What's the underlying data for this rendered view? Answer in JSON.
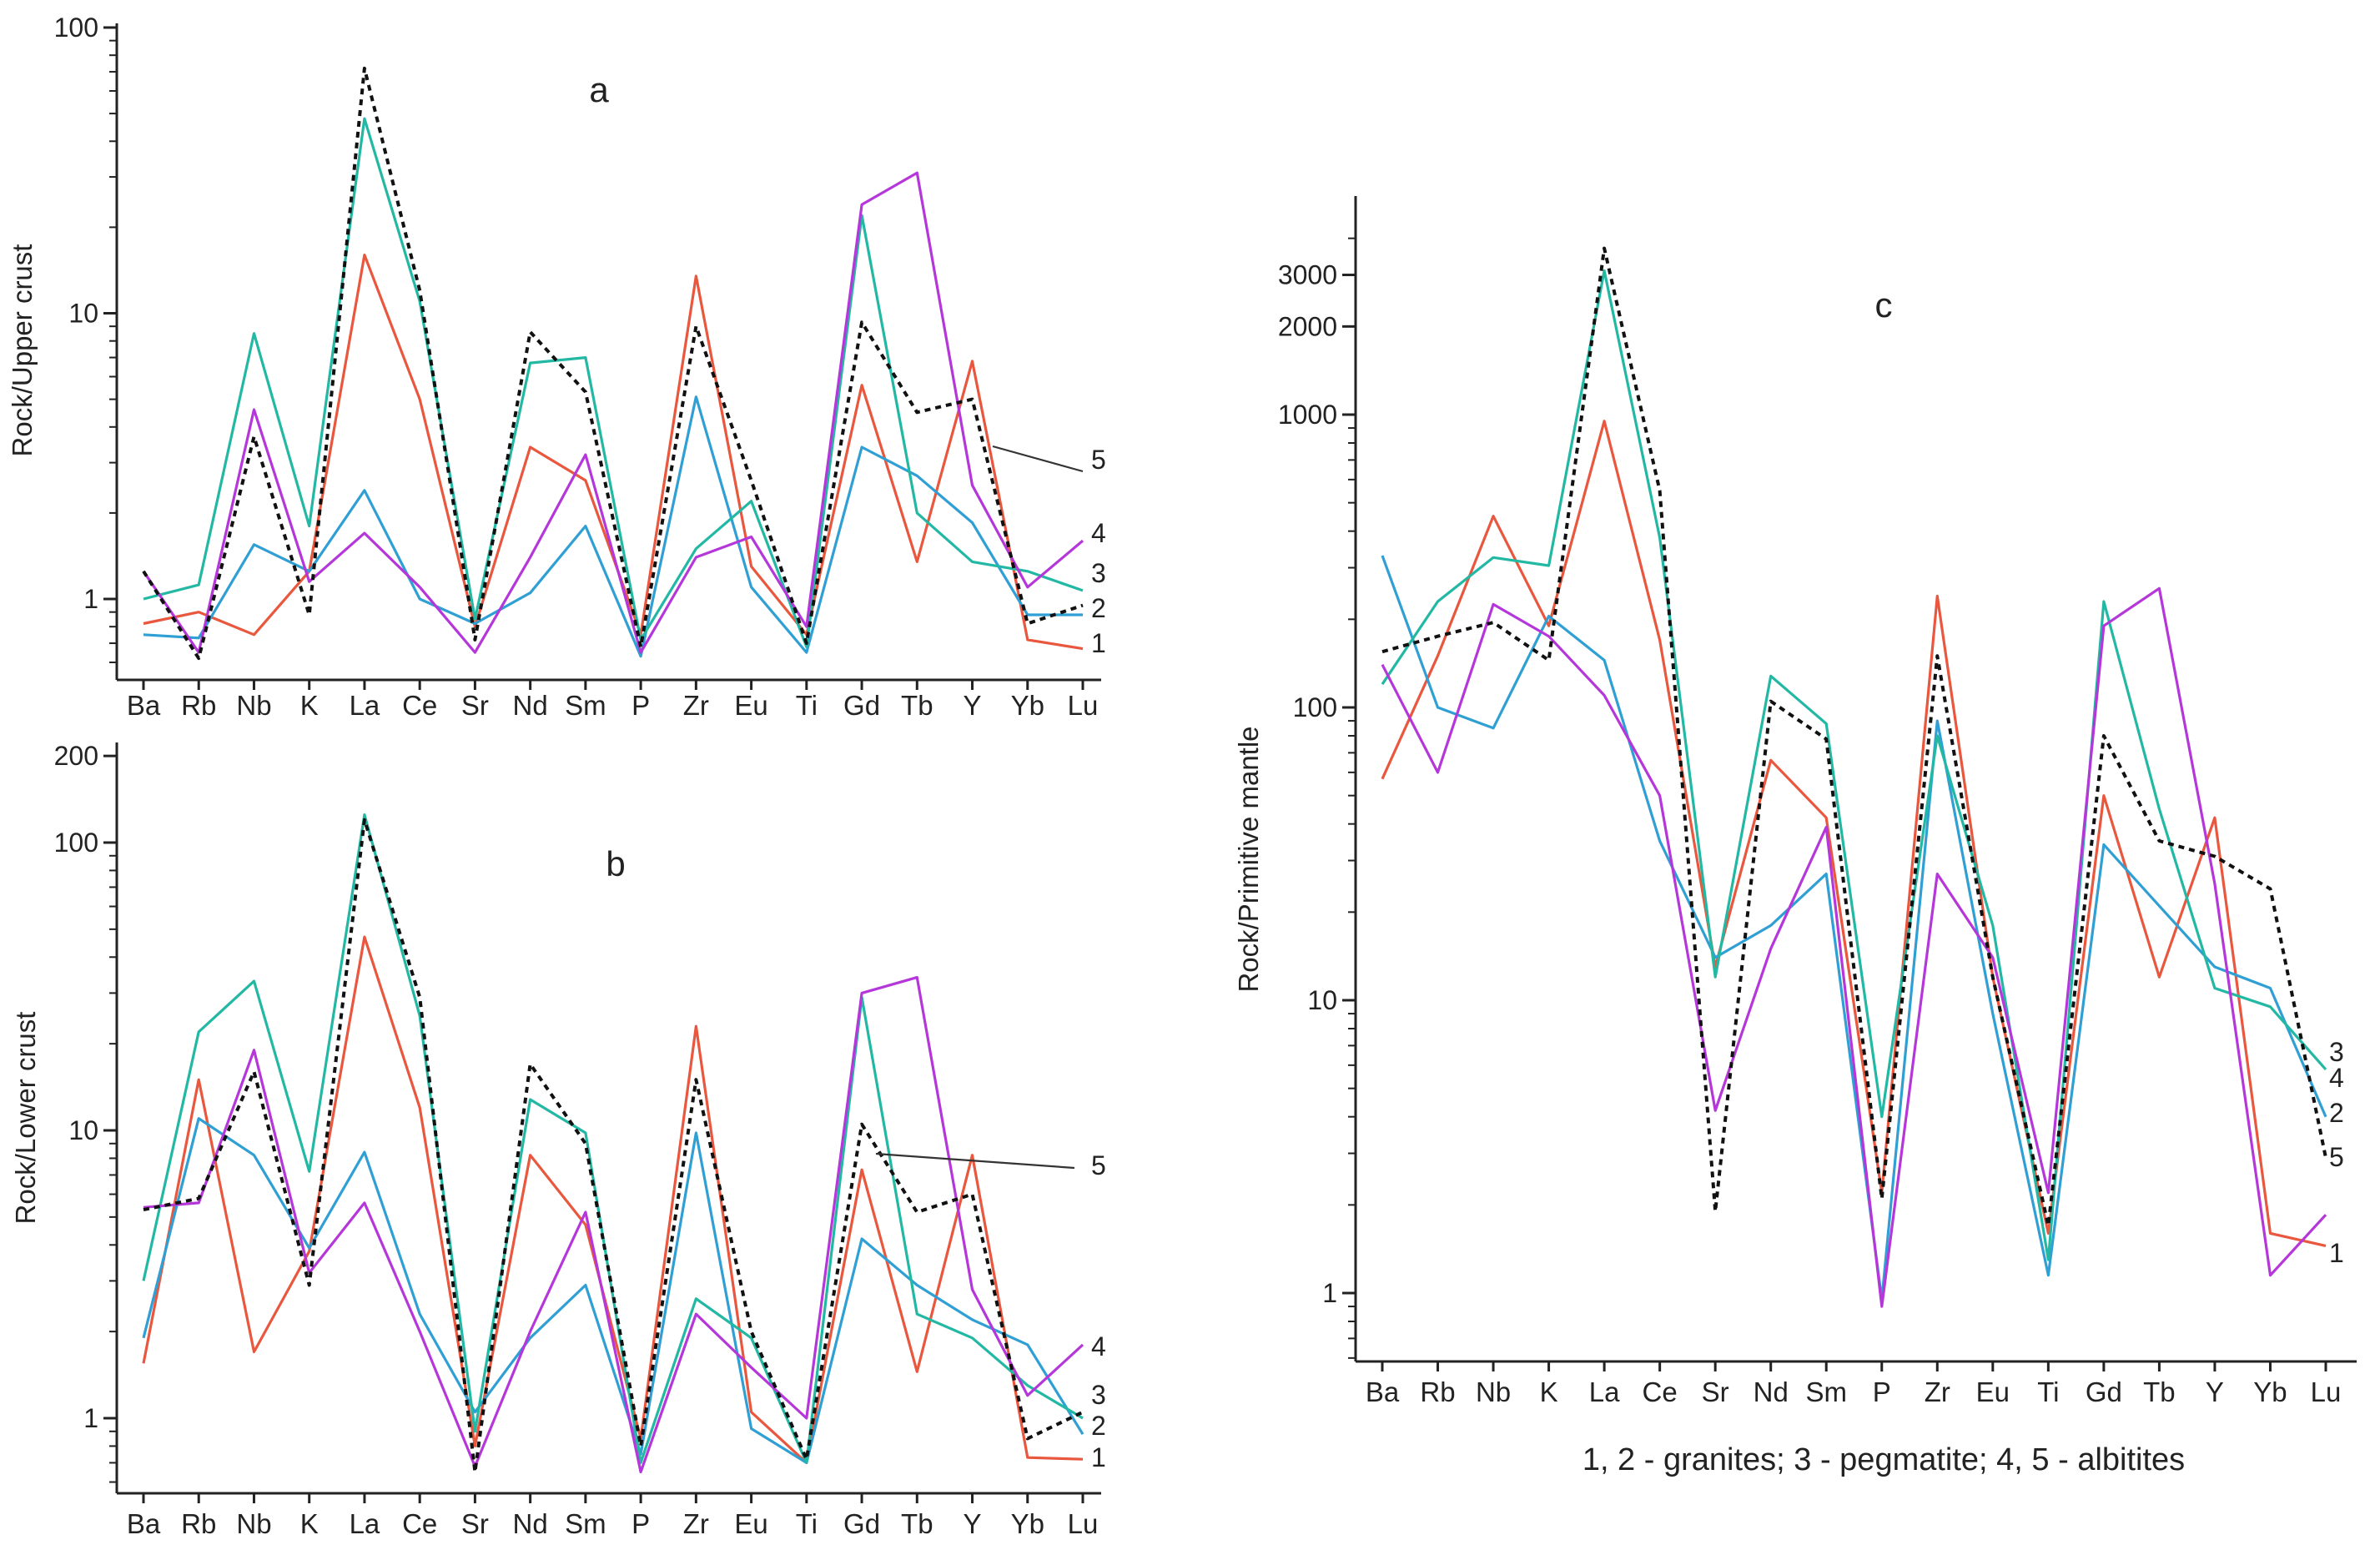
{
  "caption": "1, 2 - granites; 3 - pegmatite; 4, 5 - albitites",
  "series_styles": [
    {
      "id": "1",
      "color": "#e8573e",
      "dash": "solid"
    },
    {
      "id": "2",
      "color": "#2f9fd4",
      "dash": "solid"
    },
    {
      "id": "3",
      "color": "#22b8a4",
      "dash": "solid"
    },
    {
      "id": "4",
      "color": "#b537d9",
      "dash": "solid"
    },
    {
      "id": "5",
      "color": "#111111",
      "dash": "dotted"
    }
  ],
  "chart_data": [
    {
      "panel": "a",
      "type": "line",
      "ylabel": "Rock/Upper crust",
      "y_scale": "log",
      "ylim": [
        0.55,
        100
      ],
      "y_ticks": [
        1,
        10,
        100
      ],
      "y_tick_labels": [
        "1",
        "10",
        "100"
      ],
      "categories": [
        "Ba",
        "Rb",
        "Nb",
        "K",
        "La",
        "Ce",
        "Sr",
        "Nd",
        "Sm",
        "P",
        "Zr",
        "Eu",
        "Ti",
        "Gd",
        "Tb",
        "Y",
        "Yb",
        "Lu"
      ],
      "series": [
        {
          "name": "1",
          "values": [
            0.82,
            0.9,
            0.75,
            1.25,
            16,
            5,
            0.8,
            3.4,
            2.6,
            0.75,
            13.5,
            1.3,
            0.75,
            5.6,
            1.35,
            6.8,
            0.72,
            0.67
          ]
        },
        {
          "name": "2",
          "values": [
            0.75,
            0.73,
            1.55,
            1.25,
            2.4,
            1.0,
            0.82,
            1.05,
            1.8,
            0.63,
            5.1,
            1.1,
            0.65,
            3.4,
            2.7,
            1.85,
            0.88,
            0.88
          ]
        },
        {
          "name": "3",
          "values": [
            1.0,
            1.12,
            8.5,
            1.8,
            48,
            11,
            0.85,
            6.7,
            7.0,
            0.72,
            1.5,
            2.2,
            0.68,
            22,
            2.0,
            1.35,
            1.25,
            1.07
          ]
        },
        {
          "name": "4",
          "values": [
            1.25,
            0.65,
            4.6,
            1.15,
            1.7,
            1.1,
            0.65,
            1.4,
            3.2,
            0.65,
            1.4,
            1.65,
            0.8,
            24,
            31,
            2.5,
            1.1,
            1.6
          ]
        },
        {
          "name": "5",
          "values": [
            1.25,
            0.62,
            3.7,
            0.88,
            72,
            12,
            0.72,
            8.6,
            5.3,
            0.68,
            9,
            2.6,
            0.7,
            9.3,
            4.5,
            5.0,
            0.82,
            0.95
          ]
        }
      ],
      "series_labels": [
        "1",
        "2",
        "3",
        "4",
        "5"
      ]
    },
    {
      "panel": "b",
      "type": "line",
      "ylabel": "Rock/Lower crust",
      "y_scale": "log",
      "ylim": [
        0.5,
        200
      ],
      "y_ticks": [
        1,
        10,
        100,
        200
      ],
      "y_tick_labels": [
        "1",
        "10",
        "100",
        "200"
      ],
      "categories": [
        "Ba",
        "Rb",
        "Nb",
        "K",
        "La",
        "Ce",
        "Sr",
        "Nd",
        "Sm",
        "P",
        "Zr",
        "Eu",
        "Ti",
        "Gd",
        "Tb",
        "Y",
        "Yb",
        "Lu"
      ],
      "series": [
        {
          "name": "1",
          "values": [
            1.55,
            15,
            1.7,
            3.8,
            47,
            12,
            0.8,
            8.2,
            4.7,
            0.85,
            23,
            1.05,
            0.7,
            7.3,
            1.45,
            8.2,
            0.73,
            0.72
          ]
        },
        {
          "name": "2",
          "values": [
            1.9,
            11,
            8.2,
            3.9,
            8.4,
            2.3,
            1.05,
            1.9,
            2.9,
            0.75,
            9.8,
            0.92,
            0.7,
            4.2,
            2.9,
            2.2,
            1.8,
            0.88
          ]
        },
        {
          "name": "3",
          "values": [
            3.0,
            22,
            33,
            7.2,
            125,
            25,
            0.9,
            12.8,
            9.8,
            0.7,
            2.6,
            1.9,
            0.7,
            29,
            2.3,
            1.9,
            1.3,
            1.0
          ]
        },
        {
          "name": "4",
          "values": [
            5.4,
            5.6,
            19,
            3.2,
            5.6,
            2.0,
            0.68,
            2.0,
            5.2,
            0.65,
            2.3,
            1.5,
            1.0,
            30,
            34,
            2.8,
            1.2,
            1.8
          ]
        },
        {
          "name": "5",
          "values": [
            5.3,
            5.8,
            16,
            2.9,
            120,
            29,
            0.65,
            17,
            9.0,
            0.8,
            15,
            2.0,
            0.72,
            10.5,
            5.2,
            6.0,
            0.85,
            1.05
          ]
        }
      ],
      "series_labels": [
        "1",
        "2",
        "3",
        "4",
        "5"
      ]
    },
    {
      "panel": "c",
      "type": "line",
      "ylabel": "Rock/Primitive mantle",
      "y_scale": "log",
      "ylim": [
        0.6,
        4800
      ],
      "y_ticks": [
        1,
        10,
        100,
        1000,
        2000,
        3000
      ],
      "y_tick_labels": [
        "1",
        "10",
        "100",
        "1000",
        "2000",
        "3000"
      ],
      "categories": [
        "Ba",
        "Rb",
        "Nb",
        "K",
        "La",
        "Ce",
        "Sr",
        "Nd",
        "Sm",
        "P",
        "Zr",
        "Eu",
        "Ti",
        "Gd",
        "Tb",
        "Y",
        "Yb",
        "Lu"
      ],
      "series": [
        {
          "name": "1",
          "values": [
            57,
            150,
            450,
            190,
            950,
            170,
            13,
            66,
            42,
            2.2,
            240,
            12,
            1.6,
            50,
            12,
            42,
            1.6,
            1.45
          ]
        },
        {
          "name": "2",
          "values": [
            330,
            100,
            85,
            205,
            145,
            35,
            14,
            18,
            27,
            0.95,
            90,
            9,
            1.15,
            34,
            21,
            13,
            11,
            4.0
          ]
        },
        {
          "name": "3",
          "values": [
            120,
            230,
            325,
            305,
            3100,
            380,
            12,
            128,
            88,
            4,
            80,
            18,
            1.3,
            230,
            45,
            11,
            9.5,
            5.8
          ]
        },
        {
          "name": "4",
          "values": [
            140,
            60,
            225,
            175,
            110,
            50,
            4.2,
            15,
            39,
            0.9,
            27,
            14,
            2.2,
            190,
            255,
            25,
            1.15,
            1.85
          ]
        },
        {
          "name": "5",
          "values": [
            155,
            175,
            195,
            145,
            3700,
            550,
            1.9,
            105,
            78,
            2.1,
            150,
            12,
            1.7,
            80,
            35,
            31,
            24,
            2.9
          ]
        }
      ],
      "series_labels": [
        "3",
        "4",
        "2",
        "5",
        "1"
      ]
    }
  ]
}
